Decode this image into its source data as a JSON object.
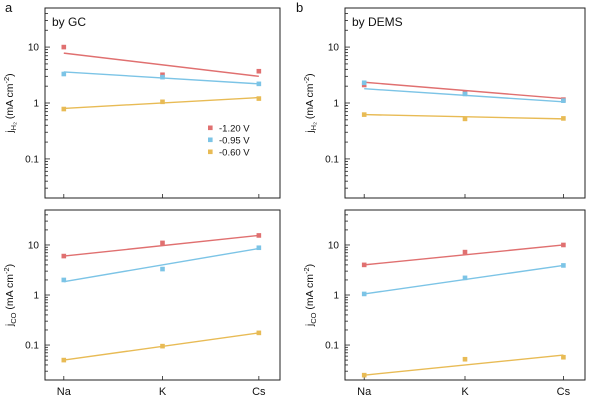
{
  "chart_data": [
    {
      "type": "scatter",
      "panel_label": "a",
      "title": "by GC",
      "xlabel": "",
      "ylabel": "j_H2 (mA cm-2)",
      "ylabel_main": "j",
      "ylabel_sub": "H₂",
      "ylabel_rest": " (mA cm",
      "ylabel_sup": "-2",
      "ylabel_close": ")",
      "yscale": "log",
      "ylim": [
        0.02,
        50
      ],
      "yticks": [
        "0.1",
        "1",
        "10"
      ],
      "categories": [
        "Na",
        "K",
        "Cs"
      ],
      "legend_position": "center-right",
      "series": [
        {
          "name": "-1.20 V",
          "color": "#e07070",
          "values": [
            10,
            3.2,
            3.7
          ],
          "fit": [
            7.8,
            3.0
          ]
        },
        {
          "name": "-0.95 V",
          "color": "#7cc4e6",
          "values": [
            3.3,
            2.9,
            2.2
          ],
          "fit": [
            3.6,
            2.2
          ]
        },
        {
          "name": "-0.60 V",
          "color": "#e8bb55",
          "values": [
            0.78,
            1.05,
            1.2
          ],
          "fit": [
            0.8,
            1.25
          ]
        }
      ]
    },
    {
      "type": "scatter",
      "panel_label": "b",
      "title": "by DEMS",
      "xlabel": "",
      "ylabel": "j_H2 (mA cm-2)",
      "ylabel_main": "j",
      "ylabel_sub": "H₂",
      "ylabel_rest": " (mA cm",
      "ylabel_sup": "-2",
      "ylabel_close": ")",
      "yscale": "log",
      "ylim": [
        0.02,
        50
      ],
      "yticks": [
        "0.1",
        "1",
        "10"
      ],
      "categories": [
        "Na",
        "K",
        "Cs"
      ],
      "series": [
        {
          "name": "-1.20 V",
          "color": "#e07070",
          "values": [
            2.1,
            1.55,
            1.15
          ],
          "fit": [
            2.35,
            1.2
          ]
        },
        {
          "name": "-0.95 V",
          "color": "#7cc4e6",
          "values": [
            2.3,
            1.45,
            1.1
          ],
          "fit": [
            1.8,
            1.05
          ]
        },
        {
          "name": "-0.60 V",
          "color": "#e8bb55",
          "values": [
            0.62,
            0.52,
            0.53
          ],
          "fit": [
            0.62,
            0.52
          ]
        }
      ]
    },
    {
      "type": "scatter",
      "panel_label": "",
      "title": "",
      "xlabel": "",
      "ylabel": "j_CO (mA cm-2)",
      "ylabel_main": "j",
      "ylabel_sub": "CO",
      "ylabel_rest": " (mA cm",
      "ylabel_sup": "-2",
      "ylabel_close": ")",
      "yscale": "log",
      "ylim": [
        0.02,
        50
      ],
      "yticks": [
        "0.1",
        "1",
        "10"
      ],
      "categories": [
        "Na",
        "K",
        "Cs"
      ],
      "series": [
        {
          "name": "-1.20 V",
          "color": "#e07070",
          "values": [
            6.0,
            11,
            15.5
          ],
          "fit": [
            6.0,
            15.5
          ]
        },
        {
          "name": "-0.95 V",
          "color": "#7cc4e6",
          "values": [
            2.0,
            3.3,
            8.8
          ],
          "fit": [
            1.85,
            8.5
          ]
        },
        {
          "name": "-0.60 V",
          "color": "#e8bb55",
          "values": [
            0.05,
            0.095,
            0.175
          ],
          "fit": [
            0.05,
            0.175
          ]
        }
      ]
    },
    {
      "type": "scatter",
      "panel_label": "",
      "title": "",
      "xlabel": "",
      "ylabel": "j_CO (mA cm-2)",
      "ylabel_main": "j",
      "ylabel_sub": "CO",
      "ylabel_rest": " (mA cm",
      "ylabel_sup": "-2",
      "ylabel_close": ")",
      "yscale": "log",
      "ylim": [
        0.02,
        50
      ],
      "yticks": [
        "0.1",
        "1",
        "10"
      ],
      "categories": [
        "Na",
        "K",
        "Cs"
      ],
      "series": [
        {
          "name": "-1.20 V",
          "color": "#e07070",
          "values": [
            4.0,
            7.2,
            10
          ],
          "fit": [
            4.0,
            10
          ]
        },
        {
          "name": "-0.95 V",
          "color": "#7cc4e6",
          "values": [
            1.05,
            2.2,
            3.9
          ],
          "fit": [
            1.05,
            3.9
          ]
        },
        {
          "name": "-0.60 V",
          "color": "#e8bb55",
          "values": [
            0.025,
            0.052,
            0.057
          ],
          "fit": [
            0.025,
            0.063
          ]
        }
      ]
    }
  ]
}
